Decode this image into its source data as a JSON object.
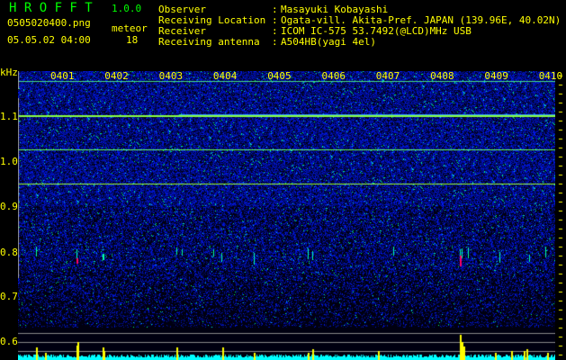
{
  "app": {
    "title": "H R O F F T",
    "version": "1.0.0"
  },
  "file": {
    "name": "0505020400.png",
    "datetime": "05.05.02 04:00"
  },
  "meteor": {
    "label": "meteor",
    "count": "18"
  },
  "info": [
    {
      "key": "Observer",
      "value": "Masayuki Kobayashi"
    },
    {
      "key": "Receiving Location",
      "value": "Ogata-vill. Akita-Pref. JAPAN (139.96E, 40.02N)"
    },
    {
      "key": "Receiver",
      "value": "ICOM IC-575 53.7492(@LCD)MHz USB"
    },
    {
      "key": "Receiving antenna",
      "value": "A504HB(yagi 4el)"
    }
  ],
  "axis": {
    "unit": "kHz",
    "y_ticks": [
      "1.1",
      "1.0",
      "0.9",
      "0.8",
      "0.7",
      "0.6"
    ],
    "x_ticks": [
      "0401",
      "0402",
      "0403",
      "0404",
      "0405",
      "0406",
      "0407",
      "0408",
      "0409",
      "0410"
    ]
  },
  "colors": {
    "text": "#ffff00",
    "title": "#00ff00",
    "noise": "#0000ff",
    "carrier": "#00ff66",
    "spectrum": "#00ffff",
    "spike": "#ffff00",
    "meteor_strong": "#ff0066"
  }
}
